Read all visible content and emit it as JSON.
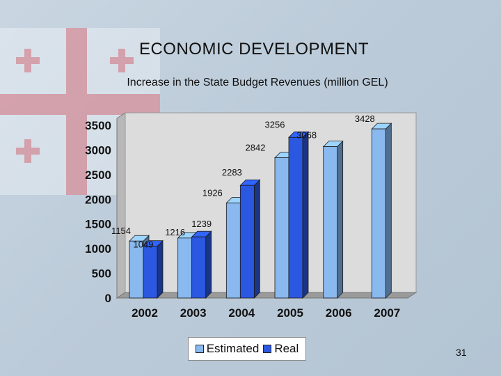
{
  "slide": {
    "title": "ECONOMIC DEVELOPMENT",
    "page_number": "31"
  },
  "colors": {
    "estimated": "#89b9ee",
    "real": "#2b58e0",
    "plot_bg": "#dcdcdc"
  },
  "chart_data": {
    "type": "bar",
    "title": "Increase in the State Budget Revenues (million GEL)",
    "categories": [
      "2002",
      "2003",
      "2004",
      "2005",
      "2006",
      "2007"
    ],
    "series": [
      {
        "name": "Estimated",
        "values": [
          1154,
          1216,
          1926,
          2842,
          3068,
          3428
        ]
      },
      {
        "name": "Real",
        "values": [
          1049,
          1239,
          2283,
          3256,
          null,
          null
        ]
      }
    ],
    "ylim": [
      0,
      3500
    ],
    "yticks": [
      0,
      500,
      1000,
      1500,
      2000,
      2500,
      3000,
      3500
    ],
    "grid": false,
    "legend_position": "bottom",
    "xlabel": "",
    "ylabel": ""
  }
}
